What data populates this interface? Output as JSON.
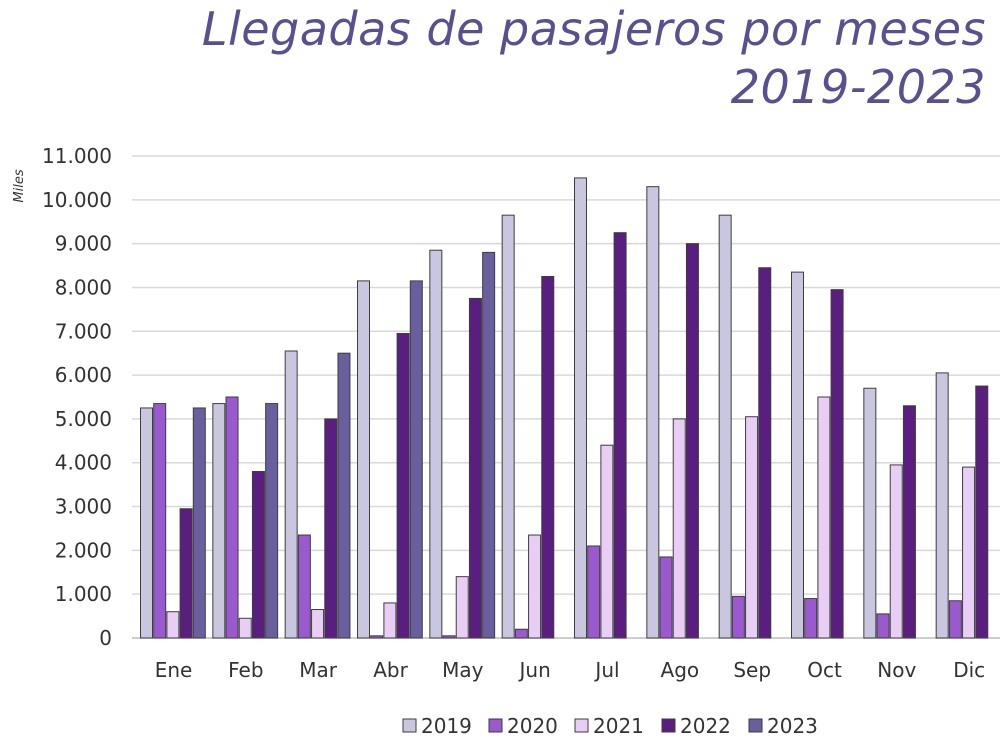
{
  "title": {
    "line1": "Llegadas de pasajeros por meses",
    "line2": "2019-2023"
  },
  "chart_data": {
    "type": "bar",
    "title": "Llegadas de pasajeros por meses 2019-2023",
    "ylabel": "Miles",
    "xlabel": "",
    "ylim": [
      0,
      11000
    ],
    "ytick_step": 1000,
    "grid": true,
    "legend_position": "bottom",
    "categories": [
      "Ene",
      "Feb",
      "Mar",
      "Abr",
      "May",
      "Jun",
      "Jul",
      "Ago",
      "Sep",
      "Oct",
      "Nov",
      "Dic"
    ],
    "series": [
      {
        "name": "2019",
        "color": "#c9c6e0",
        "values": [
          5250,
          5350,
          6550,
          8150,
          8850,
          9650,
          10500,
          10300,
          9650,
          8350,
          5700,
          6050
        ]
      },
      {
        "name": "2020",
        "color": "#9b59d0",
        "values": [
          5350,
          5500,
          2350,
          50,
          50,
          200,
          2100,
          1850,
          950,
          900,
          550,
          850
        ]
      },
      {
        "name": "2021",
        "color": "#e8cdf5",
        "values": [
          600,
          450,
          650,
          800,
          1400,
          2350,
          4400,
          5000,
          5050,
          5500,
          3950,
          3900
        ]
      },
      {
        "name": "2022",
        "color": "#5a1d80",
        "values": [
          2950,
          3800,
          5000,
          6950,
          7750,
          8250,
          9250,
          9000,
          8450,
          7950,
          5300,
          5750
        ]
      },
      {
        "name": "2023",
        "color": "#6a5f9e",
        "values": [
          5250,
          5350,
          6500,
          8150,
          8800,
          null,
          null,
          null,
          null,
          null,
          null,
          null
        ]
      }
    ],
    "ytick_labels": [
      "0",
      "1.000",
      "2.000",
      "3.000",
      "4.000",
      "5.000",
      "6.000",
      "7.000",
      "8.000",
      "9.000",
      "10.000",
      "11.000"
    ]
  }
}
